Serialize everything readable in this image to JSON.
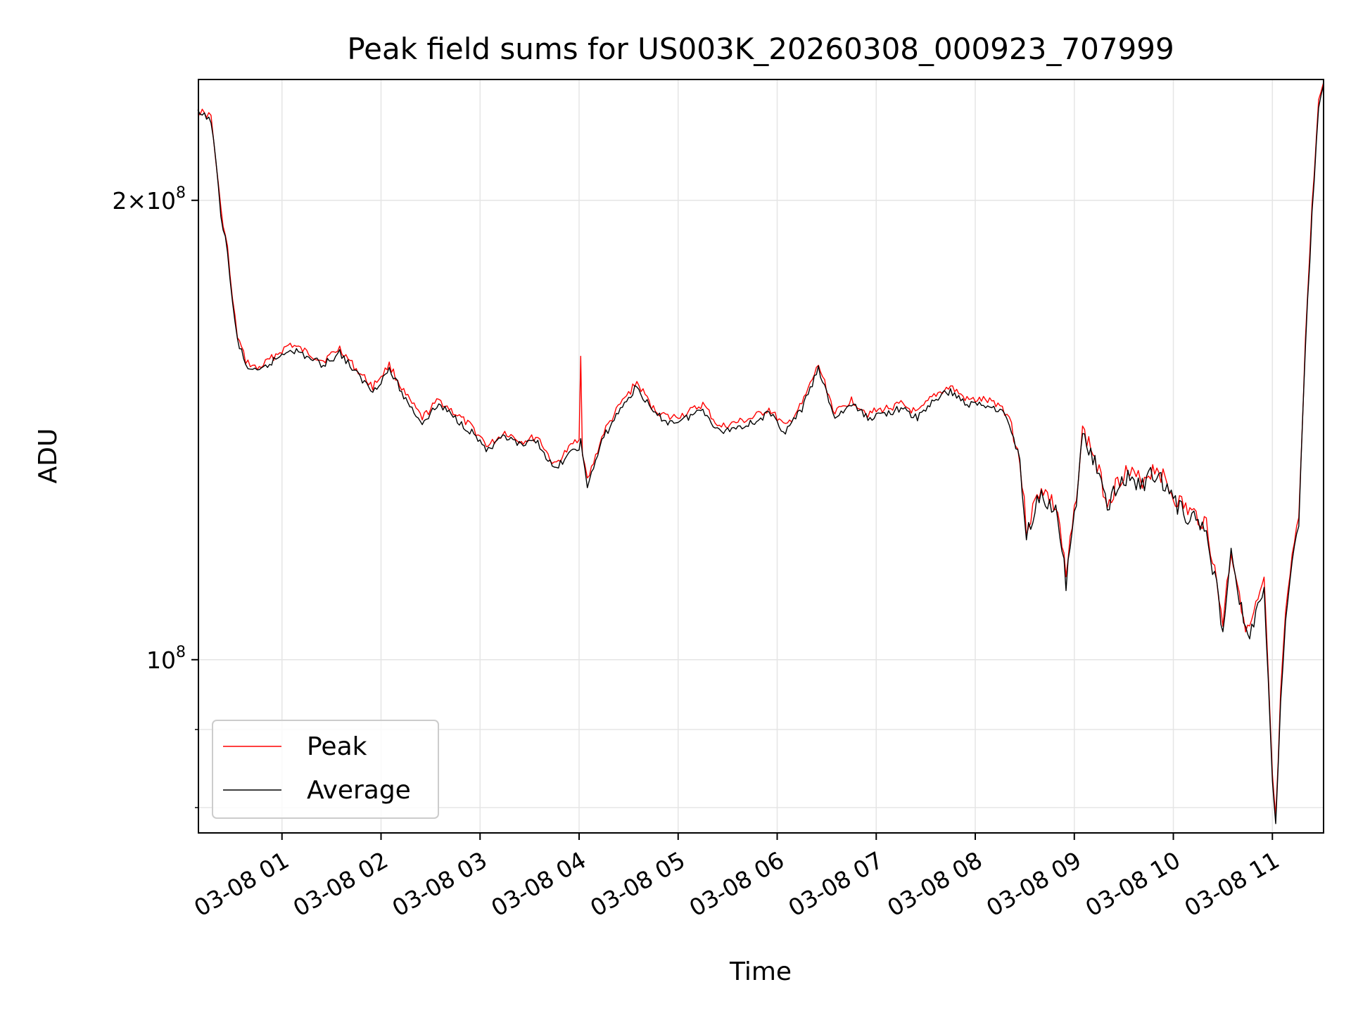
{
  "chart_data": {
    "type": "line",
    "title": "Peak field sums for US003K_20260308_000923_707999",
    "xlabel": "Time",
    "ylabel": "ADU",
    "y_scale": "log",
    "ylim": [
      77000000,
      240000000
    ],
    "xlim": [
      "2026-03-08T00:09:23",
      "2026-03-08T11:31:00"
    ],
    "grid": true,
    "legend": {
      "position": "lower-left",
      "entries": [
        "Peak",
        "Average"
      ]
    },
    "x_ticks": [
      {
        "t": "2026-03-08T01:00",
        "label": "03-08 01"
      },
      {
        "t": "2026-03-08T02:00",
        "label": "03-08 02"
      },
      {
        "t": "2026-03-08T03:00",
        "label": "03-08 03"
      },
      {
        "t": "2026-03-08T04:00",
        "label": "03-08 04"
      },
      {
        "t": "2026-03-08T05:00",
        "label": "03-08 05"
      },
      {
        "t": "2026-03-08T06:00",
        "label": "03-08 06"
      },
      {
        "t": "2026-03-08T07:00",
        "label": "03-08 07"
      },
      {
        "t": "2026-03-08T08:00",
        "label": "03-08 08"
      },
      {
        "t": "2026-03-08T09:00",
        "label": "03-08 09"
      },
      {
        "t": "2026-03-08T10:00",
        "label": "03-08 10"
      },
      {
        "t": "2026-03-08T11:00",
        "label": "03-08 11"
      }
    ],
    "y_major_ticks": [
      {
        "value": 200000000,
        "base": "2×10",
        "exp": "8"
      },
      {
        "value": 100000000,
        "base": "10",
        "exp": "8"
      }
    ],
    "y_minor_ticks": [
      80000000,
      90000000,
      200000000
    ],
    "series": [
      {
        "name": "Peak",
        "color": "#ff0000",
        "points": [
          [
            "2026-03-08T00:09",
            229000000
          ],
          [
            "2026-03-08T00:17",
            227000000
          ],
          [
            "2026-03-08T00:20",
            212000000
          ],
          [
            "2026-03-08T00:23",
            197000000
          ],
          [
            "2026-03-08T00:27",
            186000000
          ],
          [
            "2026-03-08T00:30",
            172000000
          ],
          [
            "2026-03-08T00:33",
            163000000
          ],
          [
            "2026-03-08T00:38",
            157000000
          ],
          [
            "2026-03-08T00:45",
            155000000
          ],
          [
            "2026-03-08T00:55",
            158000000
          ],
          [
            "2026-03-08T01:05",
            161000000
          ],
          [
            "2026-03-08T01:15",
            159000000
          ],
          [
            "2026-03-08T01:25",
            157000000
          ],
          [
            "2026-03-08T01:35",
            160000000
          ],
          [
            "2026-03-08T01:45",
            155000000
          ],
          [
            "2026-03-08T01:55",
            151000000
          ],
          [
            "2026-03-08T02:05",
            156000000
          ],
          [
            "2026-03-08T02:15",
            149000000
          ],
          [
            "2026-03-08T02:25",
            144000000
          ],
          [
            "2026-03-08T02:35",
            148000000
          ],
          [
            "2026-03-08T02:45",
            145000000
          ],
          [
            "2026-03-08T02:55",
            142000000
          ],
          [
            "2026-03-08T03:05",
            138000000
          ],
          [
            "2026-03-08T03:15",
            141000000
          ],
          [
            "2026-03-08T03:25",
            139000000
          ],
          [
            "2026-03-08T03:35",
            140000000
          ],
          [
            "2026-03-08T03:45",
            134000000
          ],
          [
            "2026-03-08T03:50",
            136000000
          ],
          [
            "2026-03-08T04:00",
            140000000
          ],
          [
            "2026-03-08T04:01",
            158000000
          ],
          [
            "2026-03-08T04:02",
            137000000
          ],
          [
            "2026-03-08T04:05",
            131000000
          ],
          [
            "2026-03-08T04:15",
            141000000
          ],
          [
            "2026-03-08T04:25",
            147000000
          ],
          [
            "2026-03-08T04:35",
            152000000
          ],
          [
            "2026-03-08T04:45",
            146000000
          ],
          [
            "2026-03-08T04:55",
            144000000
          ],
          [
            "2026-03-08T05:05",
            145000000
          ],
          [
            "2026-03-08T05:15",
            147000000
          ],
          [
            "2026-03-08T05:25",
            142000000
          ],
          [
            "2026-03-08T05:35",
            143000000
          ],
          [
            "2026-03-08T05:45",
            144000000
          ],
          [
            "2026-03-08T05:55",
            146000000
          ],
          [
            "2026-03-08T06:05",
            142000000
          ],
          [
            "2026-03-08T06:15",
            147000000
          ],
          [
            "2026-03-08T06:25",
            156000000
          ],
          [
            "2026-03-08T06:35",
            145000000
          ],
          [
            "2026-03-08T06:45",
            148000000
          ],
          [
            "2026-03-08T06:55",
            145000000
          ],
          [
            "2026-03-08T07:05",
            146000000
          ],
          [
            "2026-03-08T07:15",
            147000000
          ],
          [
            "2026-03-08T07:25",
            145000000
          ],
          [
            "2026-03-08T07:35",
            149000000
          ],
          [
            "2026-03-08T07:45",
            151000000
          ],
          [
            "2026-03-08T07:55",
            148000000
          ],
          [
            "2026-03-08T08:05",
            148000000
          ],
          [
            "2026-03-08T08:15",
            147000000
          ],
          [
            "2026-03-08T08:22",
            143000000
          ],
          [
            "2026-03-08T08:27",
            135000000
          ],
          [
            "2026-03-08T08:31",
            122000000
          ],
          [
            "2026-03-08T08:40",
            130000000
          ],
          [
            "2026-03-08T08:50",
            125000000
          ],
          [
            "2026-03-08T08:55",
            113000000
          ],
          [
            "2026-03-08T09:00",
            125000000
          ],
          [
            "2026-03-08T09:05",
            141000000
          ],
          [
            "2026-03-08T09:10",
            138000000
          ],
          [
            "2026-03-08T09:20",
            127000000
          ],
          [
            "2026-03-08T09:30",
            133000000
          ],
          [
            "2026-03-08T09:40",
            131000000
          ],
          [
            "2026-03-08T09:50",
            134000000
          ],
          [
            "2026-03-08T10:00",
            128000000
          ],
          [
            "2026-03-08T10:10",
            125000000
          ],
          [
            "2026-03-08T10:20",
            123000000
          ],
          [
            "2026-03-08T10:30",
            106000000
          ],
          [
            "2026-03-08T10:35",
            118000000
          ],
          [
            "2026-03-08T10:45",
            104000000
          ],
          [
            "2026-03-08T10:55",
            112000000
          ],
          [
            "2026-03-08T11:00",
            84000000
          ],
          [
            "2026-03-08T11:02",
            78000000
          ],
          [
            "2026-03-08T11:05",
            95000000
          ],
          [
            "2026-03-08T11:08",
            107000000
          ],
          [
            "2026-03-08T11:12",
            117000000
          ],
          [
            "2026-03-08T11:16",
            124000000
          ],
          [
            "2026-03-08T11:20",
            162000000
          ],
          [
            "2026-03-08T11:24",
            198000000
          ],
          [
            "2026-03-08T11:28",
            232000000
          ],
          [
            "2026-03-08T11:31",
            239000000
          ]
        ]
      },
      {
        "name": "Average",
        "color": "#000000",
        "points": [
          [
            "2026-03-08T00:09",
            228000000
          ],
          [
            "2026-03-08T00:17",
            226000000
          ],
          [
            "2026-03-08T00:20",
            211000000
          ],
          [
            "2026-03-08T00:23",
            196000000
          ],
          [
            "2026-03-08T00:27",
            185000000
          ],
          [
            "2026-03-08T00:30",
            171000000
          ],
          [
            "2026-03-08T00:33",
            162000000
          ],
          [
            "2026-03-08T00:38",
            156000000
          ],
          [
            "2026-03-08T00:45",
            154000000
          ],
          [
            "2026-03-08T00:55",
            157000000
          ],
          [
            "2026-03-08T01:05",
            160000000
          ],
          [
            "2026-03-08T01:15",
            158000000
          ],
          [
            "2026-03-08T01:25",
            156000000
          ],
          [
            "2026-03-08T01:35",
            159000000
          ],
          [
            "2026-03-08T01:45",
            154000000
          ],
          [
            "2026-03-08T01:55",
            150000000
          ],
          [
            "2026-03-08T02:05",
            155000000
          ],
          [
            "2026-03-08T02:15",
            148000000
          ],
          [
            "2026-03-08T02:25",
            143000000
          ],
          [
            "2026-03-08T02:35",
            147000000
          ],
          [
            "2026-03-08T02:45",
            144000000
          ],
          [
            "2026-03-08T02:55",
            141000000
          ],
          [
            "2026-03-08T03:05",
            137000000
          ],
          [
            "2026-03-08T03:15",
            140000000
          ],
          [
            "2026-03-08T03:25",
            138000000
          ],
          [
            "2026-03-08T03:35",
            139000000
          ],
          [
            "2026-03-08T03:45",
            133000000
          ],
          [
            "2026-03-08T03:50",
            135000000
          ],
          [
            "2026-03-08T04:00",
            138000000
          ],
          [
            "2026-03-08T04:01",
            139000000
          ],
          [
            "2026-03-08T04:02",
            136000000
          ],
          [
            "2026-03-08T04:05",
            130000000
          ],
          [
            "2026-03-08T04:15",
            140000000
          ],
          [
            "2026-03-08T04:25",
            146000000
          ],
          [
            "2026-03-08T04:35",
            151000000
          ],
          [
            "2026-03-08T04:45",
            145000000
          ],
          [
            "2026-03-08T04:55",
            143000000
          ],
          [
            "2026-03-08T05:05",
            144000000
          ],
          [
            "2026-03-08T05:15",
            146000000
          ],
          [
            "2026-03-08T05:25",
            141000000
          ],
          [
            "2026-03-08T05:35",
            142000000
          ],
          [
            "2026-03-08T05:45",
            143000000
          ],
          [
            "2026-03-08T05:55",
            145000000
          ],
          [
            "2026-03-08T06:05",
            141000000
          ],
          [
            "2026-03-08T06:15",
            146000000
          ],
          [
            "2026-03-08T06:25",
            155000000
          ],
          [
            "2026-03-08T06:35",
            144000000
          ],
          [
            "2026-03-08T06:45",
            147000000
          ],
          [
            "2026-03-08T06:55",
            144000000
          ],
          [
            "2026-03-08T07:05",
            145000000
          ],
          [
            "2026-03-08T07:15",
            146000000
          ],
          [
            "2026-03-08T07:25",
            144000000
          ],
          [
            "2026-03-08T07:35",
            148000000
          ],
          [
            "2026-03-08T07:45",
            150000000
          ],
          [
            "2026-03-08T07:55",
            147000000
          ],
          [
            "2026-03-08T08:05",
            147000000
          ],
          [
            "2026-03-08T08:15",
            146000000
          ],
          [
            "2026-03-08T08:22",
            142000000
          ],
          [
            "2026-03-08T08:27",
            134000000
          ],
          [
            "2026-03-08T08:31",
            121000000
          ],
          [
            "2026-03-08T08:40",
            129000000
          ],
          [
            "2026-03-08T08:50",
            124000000
          ],
          [
            "2026-03-08T08:55",
            112000000
          ],
          [
            "2026-03-08T09:00",
            124000000
          ],
          [
            "2026-03-08T09:05",
            140000000
          ],
          [
            "2026-03-08T09:10",
            137000000
          ],
          [
            "2026-03-08T09:20",
            126000000
          ],
          [
            "2026-03-08T09:30",
            132000000
          ],
          [
            "2026-03-08T09:40",
            130000000
          ],
          [
            "2026-03-08T09:50",
            133000000
          ],
          [
            "2026-03-08T10:00",
            127000000
          ],
          [
            "2026-03-08T10:10",
            124000000
          ],
          [
            "2026-03-08T10:20",
            122000000
          ],
          [
            "2026-03-08T10:30",
            105000000
          ],
          [
            "2026-03-08T10:35",
            117000000
          ],
          [
            "2026-03-08T10:45",
            103000000
          ],
          [
            "2026-03-08T10:55",
            111000000
          ],
          [
            "2026-03-08T11:00",
            83000000
          ],
          [
            "2026-03-08T11:02",
            77500000
          ],
          [
            "2026-03-08T11:05",
            94000000
          ],
          [
            "2026-03-08T11:08",
            106000000
          ],
          [
            "2026-03-08T11:12",
            116000000
          ],
          [
            "2026-03-08T11:16",
            123000000
          ],
          [
            "2026-03-08T11:20",
            160000000
          ],
          [
            "2026-03-08T11:24",
            196000000
          ],
          [
            "2026-03-08T11:28",
            231000000
          ],
          [
            "2026-03-08T11:31",
            238000000
          ]
        ]
      }
    ]
  }
}
